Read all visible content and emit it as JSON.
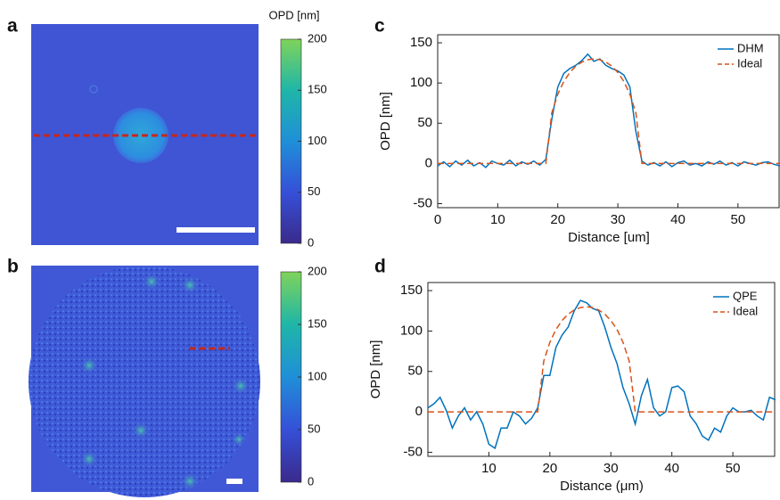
{
  "chart_data": [
    {
      "type": "image",
      "panel": "a",
      "colorbar": {
        "label": "OPD [nm]",
        "lim": [
          0,
          200
        ],
        "ticks": [
          0,
          50,
          100,
          150,
          200
        ]
      }
    },
    {
      "type": "image",
      "panel": "b",
      "colorbar": {
        "lim": [
          0,
          200
        ],
        "ticks": [
          0,
          50,
          100,
          150,
          200
        ]
      }
    },
    {
      "type": "line",
      "panel": "c",
      "xlabel": "Distance [um]",
      "ylabel": "OPD [nm]",
      "legend": "upper right",
      "x": [
        0,
        1,
        2,
        3,
        4,
        5,
        6,
        7,
        8,
        9,
        10,
        11,
        12,
        13,
        14,
        15,
        16,
        17,
        18,
        19,
        20,
        21,
        22,
        23,
        24,
        25,
        26,
        27,
        28,
        29,
        30,
        31,
        32,
        33,
        34,
        35,
        36,
        37,
        38,
        39,
        40,
        41,
        42,
        43,
        44,
        45,
        46,
        47,
        48,
        49,
        50,
        51,
        52,
        53,
        54,
        55,
        56,
        57
      ],
      "series": [
        {
          "name": "DHM",
          "color": "#0072bd",
          "dashed": false,
          "values": [
            -3,
            2,
            -4,
            3,
            -2,
            4,
            -3,
            1,
            -5,
            3,
            0,
            -2,
            4,
            -3,
            2,
            -1,
            3,
            -2,
            5,
            55,
            95,
            112,
            118,
            122,
            128,
            136,
            127,
            130,
            122,
            118,
            115,
            110,
            95,
            40,
            3,
            -2,
            1,
            -3,
            2,
            -4,
            1,
            3,
            -2,
            0,
            -3,
            2,
            -1,
            3,
            -2,
            1,
            -3,
            2,
            0,
            -2,
            1,
            2,
            -1,
            -3
          ]
        },
        {
          "name": "Ideal",
          "color": "#d95319",
          "dashed": true,
          "values": [
            0,
            0,
            0,
            0,
            0,
            0,
            0,
            0,
            0,
            0,
            0,
            0,
            0,
            0,
            0,
            0,
            0,
            0,
            0,
            63,
            86,
            102,
            113,
            121,
            126,
            129,
            130,
            129,
            126,
            121,
            113,
            102,
            86,
            63,
            0,
            0,
            0,
            0,
            0,
            0,
            0,
            0,
            0,
            0,
            0,
            0,
            0,
            0,
            0,
            0,
            0,
            0,
            0,
            0,
            0,
            0,
            0,
            0
          ]
        }
      ],
      "xlim": [
        0,
        57
      ],
      "xticks": [
        0,
        10,
        20,
        30,
        40,
        50
      ],
      "ylim": [
        -55,
        160
      ],
      "yticks": [
        -50,
        0,
        50,
        100,
        150
      ]
    },
    {
      "type": "line",
      "panel": "d",
      "xlabel": "Distance (μm)",
      "ylabel": "OPD [nm]",
      "legend": "upper right",
      "x": [
        0,
        1,
        2,
        3,
        4,
        5,
        6,
        7,
        8,
        9,
        10,
        11,
        12,
        13,
        14,
        15,
        16,
        17,
        18,
        19,
        20,
        21,
        22,
        23,
        24,
        25,
        26,
        27,
        28,
        29,
        30,
        31,
        32,
        33,
        34,
        35,
        36,
        37,
        38,
        39,
        40,
        41,
        42,
        43,
        44,
        45,
        46,
        47,
        48,
        49,
        50,
        51,
        52,
        53,
        54,
        55,
        56,
        57
      ],
      "series": [
        {
          "name": "QPE",
          "color": "#0072bd",
          "dashed": false,
          "values": [
            5,
            10,
            18,
            2,
            -20,
            -5,
            5,
            -10,
            0,
            -15,
            -40,
            -45,
            -20,
            -20,
            0,
            -5,
            -15,
            -8,
            5,
            45,
            45,
            80,
            95,
            105,
            125,
            138,
            135,
            128,
            125,
            105,
            80,
            60,
            30,
            10,
            -15,
            20,
            40,
            5,
            -5,
            0,
            30,
            32,
            25,
            -5,
            -15,
            -30,
            -35,
            -20,
            -25,
            -5,
            5,
            0,
            0,
            2,
            -5,
            -10,
            18,
            15
          ]
        },
        {
          "name": "Ideal",
          "color": "#d95319",
          "dashed": true,
          "values": [
            0,
            0,
            0,
            0,
            0,
            0,
            0,
            0,
            0,
            0,
            0,
            0,
            0,
            0,
            0,
            0,
            0,
            0,
            0,
            63,
            86,
            102,
            113,
            121,
            126,
            129,
            130,
            129,
            126,
            121,
            113,
            102,
            86,
            63,
            0,
            0,
            0,
            0,
            0,
            0,
            0,
            0,
            0,
            0,
            0,
            0,
            0,
            0,
            0,
            0,
            0,
            0,
            0,
            0,
            0,
            0,
            0,
            0
          ]
        }
      ],
      "xlim": [
        0,
        57
      ],
      "xticks": [
        10,
        20,
        30,
        40,
        50
      ],
      "ylim": [
        -55,
        160
      ],
      "yticks": [
        -50,
        0,
        50,
        100,
        150
      ]
    }
  ]
}
